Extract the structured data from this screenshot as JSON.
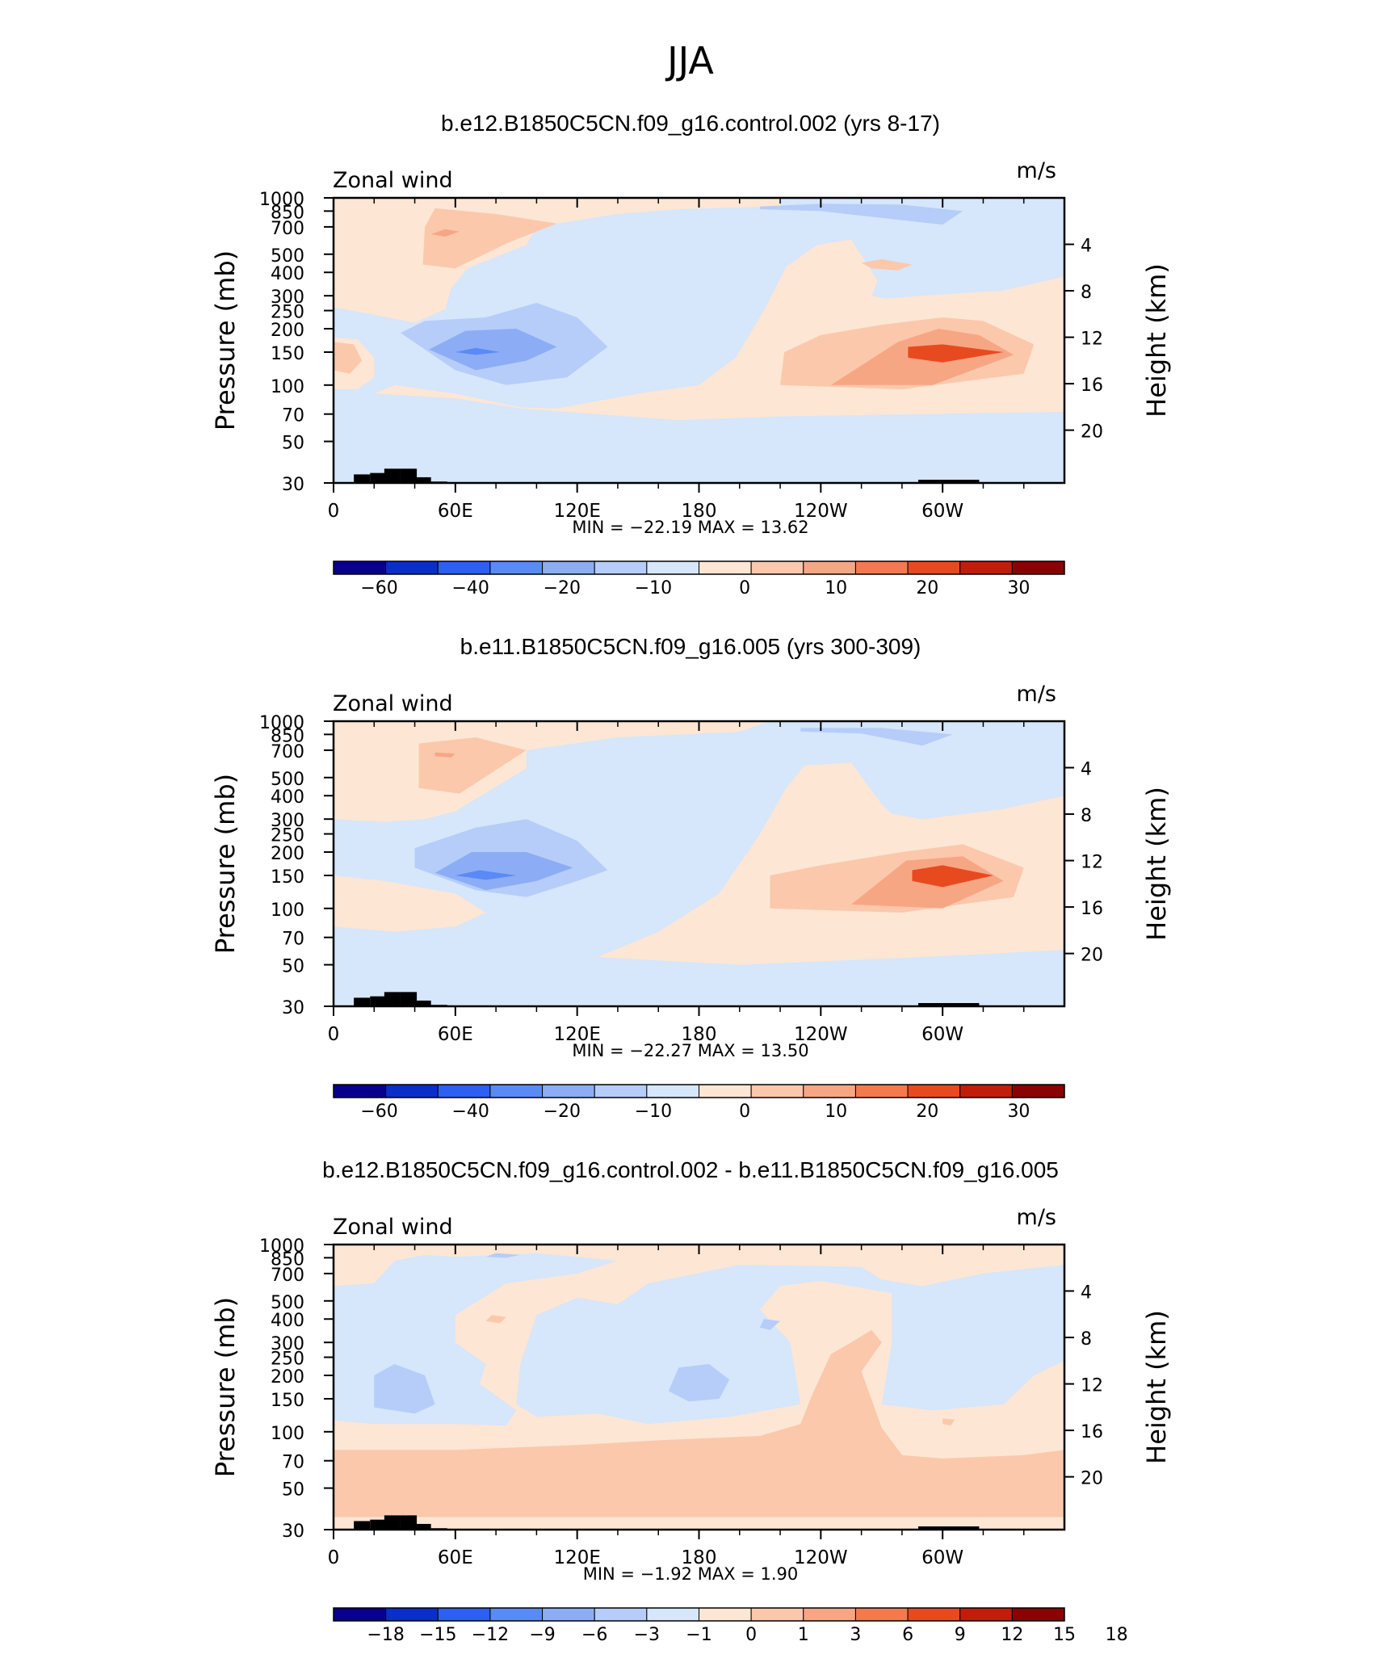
{
  "figure": {
    "season": "JJA"
  },
  "chart_data": [
    {
      "type": "heatmap",
      "title": "b.e12.B1850C5CN.f09_g16.control.002 (yrs 8-17)",
      "left_label": "Zonal wind",
      "units": "m/s",
      "xlabel": "",
      "ylabel": "Pressure (mb)",
      "y2label": "Height (km)",
      "x_ticks": [
        "0",
        "60E",
        "120E",
        "180",
        "120W",
        "60W"
      ],
      "y_ticks": [
        "30",
        "50",
        "70",
        "100",
        "150",
        "200",
        "250",
        "300",
        "400",
        "500",
        "700",
        "850",
        "1000"
      ],
      "y2_ticks": [
        "4",
        "8",
        "12",
        "16",
        "20"
      ],
      "stats": "MIN = −22.19   MAX =  13.62",
      "colorbar": {
        "labels": [
          "−60",
          "−40",
          "−20",
          "−10",
          "0",
          "10",
          "20",
          "30"
        ],
        "colors": [
          "#08008c",
          "#0a2fc8",
          "#2d5ff0",
          "#5a8af5",
          "#8cadf5",
          "#b5cdf8",
          "#d6e6fb",
          "#fde6d4",
          "#fbc8ac",
          "#f7a684",
          "#f27a4e",
          "#e84a1f",
          "#c01e0a",
          "#8a0303"
        ]
      },
      "features": [
        {
          "name": "easterly jet core",
          "value": -22.19,
          "lon": 75,
          "p": 150
        },
        {
          "name": "westerly jet core",
          "value": 13.62,
          "lon": 295,
          "p": 150
        }
      ]
    },
    {
      "type": "heatmap",
      "title": "b.e11.B1850C5CN.f09_g16.005 (yrs 300-309)",
      "left_label": "Zonal wind",
      "units": "m/s",
      "xlabel": "",
      "ylabel": "Pressure (mb)",
      "y2label": "Height (km)",
      "x_ticks": [
        "0",
        "60E",
        "120E",
        "180",
        "120W",
        "60W"
      ],
      "y_ticks": [
        "30",
        "50",
        "70",
        "100",
        "150",
        "200",
        "250",
        "300",
        "400",
        "500",
        "700",
        "850",
        "1000"
      ],
      "y2_ticks": [
        "4",
        "8",
        "12",
        "16",
        "20"
      ],
      "stats": "MIN = −22.27   MAX =  13.50",
      "colorbar": {
        "labels": [
          "−60",
          "−40",
          "−20",
          "−10",
          "0",
          "10",
          "20",
          "30"
        ],
        "colors": [
          "#08008c",
          "#0a2fc8",
          "#2d5ff0",
          "#5a8af5",
          "#8cadf5",
          "#b5cdf8",
          "#d6e6fb",
          "#fde6d4",
          "#fbc8ac",
          "#f7a684",
          "#f27a4e",
          "#e84a1f",
          "#c01e0a",
          "#8a0303"
        ]
      },
      "features": [
        {
          "name": "easterly jet core",
          "value": -22.27,
          "lon": 75,
          "p": 150
        },
        {
          "name": "westerly jet core",
          "value": 13.5,
          "lon": 295,
          "p": 150
        }
      ]
    },
    {
      "type": "heatmap",
      "title": "b.e12.B1850C5CN.f09_g16.control.002 - b.e11.B1850C5CN.f09_g16.005",
      "left_label": "Zonal wind",
      "units": "m/s",
      "xlabel": "",
      "ylabel": "Pressure (mb)",
      "y2label": "Height (km)",
      "x_ticks": [
        "0",
        "60E",
        "120E",
        "180",
        "120W",
        "60W"
      ],
      "y_ticks": [
        "30",
        "50",
        "70",
        "100",
        "150",
        "200",
        "250",
        "300",
        "400",
        "500",
        "700",
        "850",
        "1000"
      ],
      "y2_ticks": [
        "4",
        "8",
        "12",
        "16",
        "20"
      ],
      "stats": "MIN =   −1.92   MAX =    1.90",
      "colorbar": {
        "labels": [
          "−18",
          "−15",
          "−12",
          "−9",
          "−6",
          "−3",
          "−1",
          "0",
          "1",
          "3",
          "6",
          "9",
          "12",
          "15",
          "18"
        ],
        "colors": [
          "#08008c",
          "#0a2fc8",
          "#2d5ff0",
          "#5a8af5",
          "#8cadf5",
          "#b5cdf8",
          "#d6e6fb",
          "#fde6d4",
          "#fbc8ac",
          "#f7a684",
          "#f27a4e",
          "#e84a1f",
          "#c01e0a",
          "#8a0303"
        ]
      },
      "features": [
        {
          "name": "stratospheric positive band",
          "value": 1.0,
          "p_range": [
            30,
            70
          ]
        },
        {
          "name": "difference minimum",
          "value": -1.92
        },
        {
          "name": "difference maximum",
          "value": 1.9
        }
      ]
    }
  ]
}
